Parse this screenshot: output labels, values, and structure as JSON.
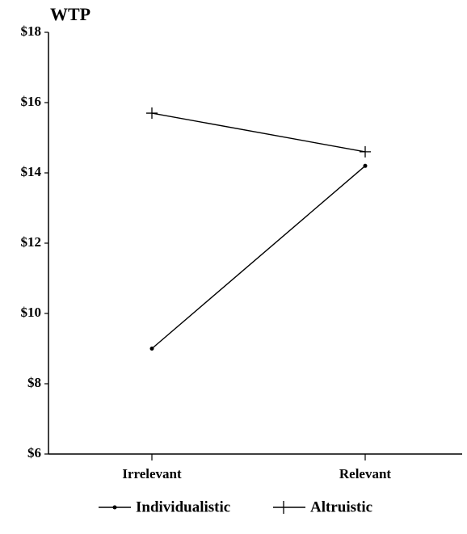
{
  "chart_data": {
    "type": "line",
    "title": "WTP",
    "categories": [
      "Irrelevant",
      "Relevant"
    ],
    "series": [
      {
        "name": "Individualistic",
        "color": "#000000",
        "marker": "dot",
        "values": [
          9.0,
          14.2
        ]
      },
      {
        "name": "Altruistic",
        "color": "#000000",
        "marker": "plus",
        "values": [
          15.7,
          14.6
        ]
      }
    ],
    "ylim": [
      6,
      18
    ],
    "yticks": [
      {
        "value": 6,
        "label": "$6"
      },
      {
        "value": 8,
        "label": "$8"
      },
      {
        "value": 10,
        "label": "$10"
      },
      {
        "value": 12,
        "label": "$12"
      },
      {
        "value": 14,
        "label": "$14"
      },
      {
        "value": 16,
        "label": "$16"
      },
      {
        "value": 18,
        "label": "$18"
      }
    ],
    "grid": false,
    "legend": "bottom"
  }
}
